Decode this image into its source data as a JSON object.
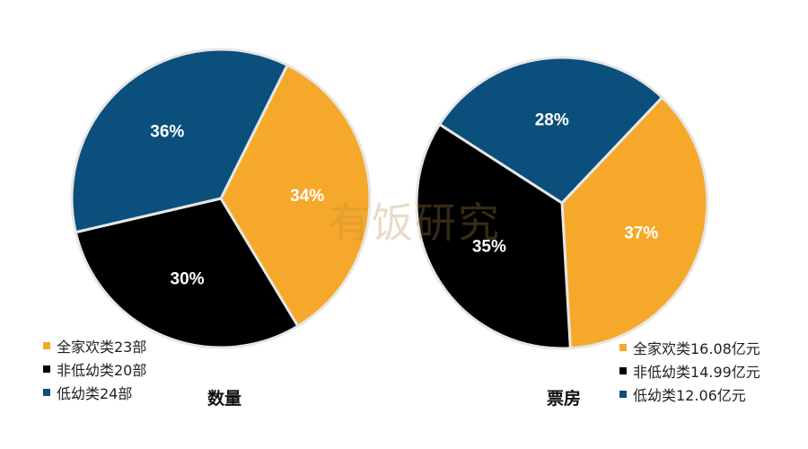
{
  "colors": {
    "family": "#F6A82A",
    "non_low_age": "#000000",
    "low_age": "#0B4F7C",
    "separator": "#E6E6E6"
  },
  "watermark": "有饭研究",
  "chart_data": [
    {
      "type": "pie",
      "title": "数量",
      "legend_placement": "bottom-left",
      "slices": [
        {
          "legend": "全家欢类23部",
          "value": 34,
          "label": "34%",
          "color": "#F6A82A"
        },
        {
          "legend": "非低幼类20部",
          "value": 30,
          "label": "30%",
          "color": "#000000"
        },
        {
          "legend": "低幼类24部",
          "value": 36,
          "label": "36%",
          "color": "#0B4F7C"
        }
      ]
    },
    {
      "type": "pie",
      "title": "票房",
      "legend_placement": "bottom-right",
      "slices": [
        {
          "legend": "全家欢类16.08亿元",
          "value": 37,
          "label": "37%",
          "color": "#F6A82A"
        },
        {
          "legend": "非低幼类14.99亿元",
          "value": 35,
          "label": "35%",
          "color": "#000000"
        },
        {
          "legend": "低幼类12.06亿元",
          "value": 28,
          "label": "28%",
          "color": "#0B4F7C"
        }
      ]
    }
  ]
}
